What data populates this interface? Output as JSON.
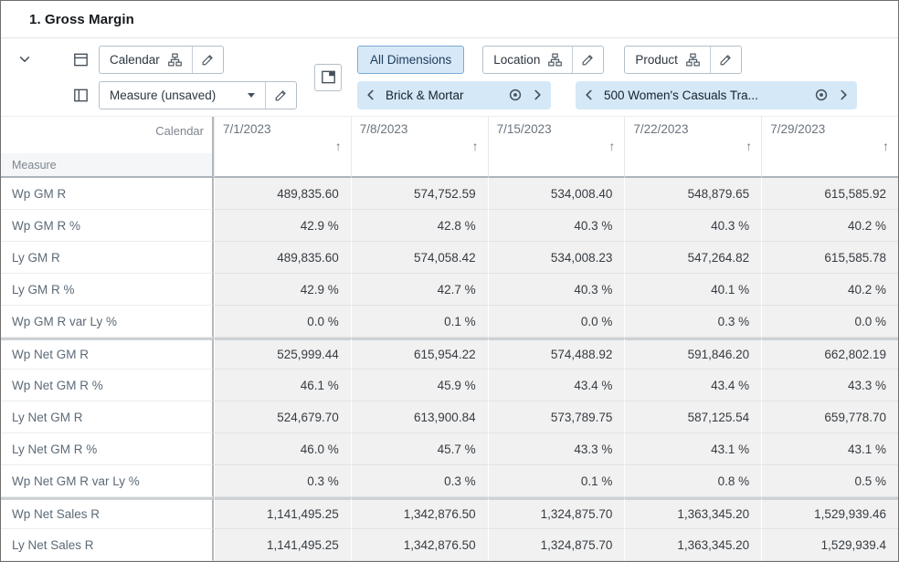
{
  "title": "1. Gross Margin",
  "toolbar": {
    "calendar": {
      "label": "Calendar"
    },
    "measure": {
      "label": "Measure (unsaved)"
    },
    "all_dimensions": {
      "label": "All Dimensions"
    },
    "location": {
      "label": "Location",
      "selection": "Brick & Mortar"
    },
    "product": {
      "label": "Product",
      "selection": "500 Women's Casuals Tra..."
    }
  },
  "grid": {
    "column_axis_label": "Calendar",
    "row_axis_label": "Measure",
    "sort_icon": "↑",
    "columns": [
      "7/1/2023",
      "7/8/2023",
      "7/15/2023",
      "7/22/2023",
      "7/29/2023"
    ],
    "row_groups": [
      {
        "rows": [
          {
            "label": "Wp GM R",
            "values": [
              "489,835.60",
              "574,752.59",
              "534,008.40",
              "548,879.65",
              "615,585.92"
            ]
          },
          {
            "label": "Wp GM R %",
            "values": [
              "42.9 %",
              "42.8 %",
              "40.3 %",
              "40.3 %",
              "40.2 %"
            ]
          },
          {
            "label": "Ly GM R",
            "values": [
              "489,835.60",
              "574,058.42",
              "534,008.23",
              "547,264.82",
              "615,585.78"
            ]
          },
          {
            "label": "Ly GM R %",
            "values": [
              "42.9 %",
              "42.7 %",
              "40.3 %",
              "40.1 %",
              "40.2 %"
            ]
          },
          {
            "label": "Wp GM R var Ly %",
            "values": [
              "0.0 %",
              "0.1 %",
              "0.0 %",
              "0.3 %",
              "0.0 %"
            ]
          }
        ]
      },
      {
        "rows": [
          {
            "label": "Wp Net GM R",
            "values": [
              "525,999.44",
              "615,954.22",
              "574,488.92",
              "591,846.20",
              "662,802.19"
            ]
          },
          {
            "label": "Wp Net GM R %",
            "values": [
              "46.1 %",
              "45.9 %",
              "43.4 %",
              "43.4 %",
              "43.3 %"
            ]
          },
          {
            "label": "Ly Net GM R",
            "values": [
              "524,679.70",
              "613,900.84",
              "573,789.75",
              "587,125.54",
              "659,778.70"
            ]
          },
          {
            "label": "Ly Net GM R %",
            "values": [
              "46.0 %",
              "45.7 %",
              "43.3 %",
              "43.1 %",
              "43.1 %"
            ]
          },
          {
            "label": "Wp Net GM R var Ly %",
            "values": [
              "0.3 %",
              "0.3 %",
              "0.1 %",
              "0.8 %",
              "0.5 %"
            ]
          }
        ]
      },
      {
        "rows": [
          {
            "label": "Wp Net Sales R",
            "values": [
              "1,141,495.25",
              "1,342,876.50",
              "1,324,875.70",
              "1,363,345.20",
              "1,529,939.46"
            ]
          },
          {
            "label": "Ly Net Sales R",
            "values": [
              "1,141,495.25",
              "1,342,876.50",
              "1,324,875.70",
              "1,363,345.20",
              "1,529,939.4"
            ]
          }
        ]
      }
    ]
  },
  "colors": {
    "selected_bg": "#d7e9f8",
    "selected_border": "#79aad6",
    "tile_bg": "#d5e8f7",
    "tile_chevron": "#14578c",
    "cell_bg": "#f1f1f1",
    "heavy_border": "#adb4ba"
  }
}
